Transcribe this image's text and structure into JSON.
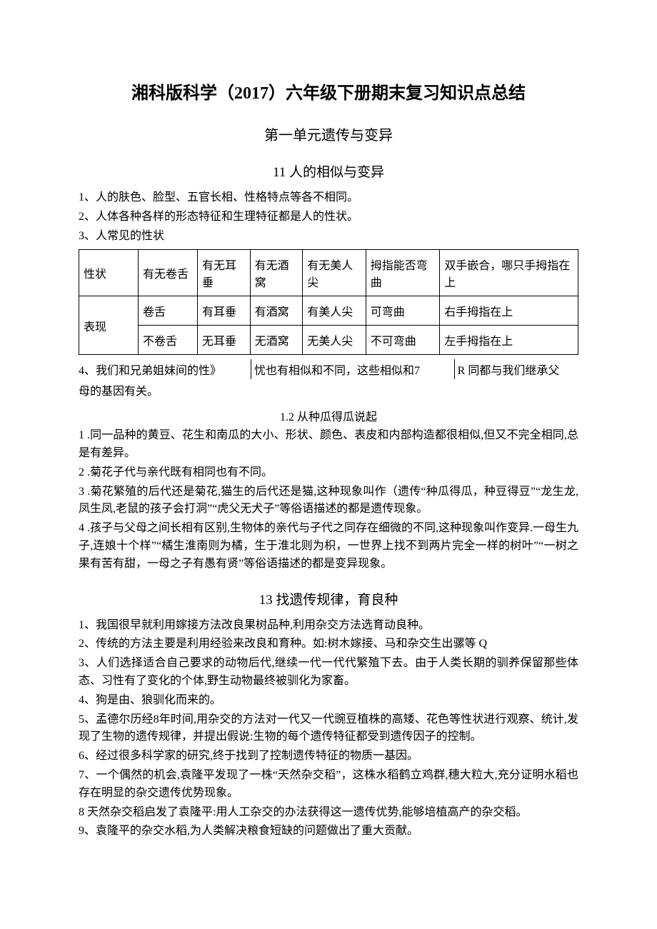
{
  "title": "湘科版科学（2017）六年级下册期末复习知识点总结",
  "unit_heading": "第一单元遗传与变异",
  "section11": {
    "heading": "11 人的相似与变异",
    "p1": "1、人的肤色、脸型、五官长相、性格特点等各不相同。",
    "p2": "2、人体各种各样的形态特征和生理特征都是人的性状。",
    "p3": "3、人常见的性状",
    "table": {
      "rows": [
        [
          "性状",
          "有无卷舌",
          "有无耳垂",
          "有无酒窝",
          "有无美人尖",
          "拇指能否弯曲",
          "双手嵌合，哪只手拇指在上"
        ],
        [
          "表现",
          "卷舌",
          "有耳垂",
          "有酒窝",
          "有美人尖",
          "可弯曲",
          "右手拇指在上"
        ],
        [
          "不卷舌",
          "无耳垂",
          "无酒窝",
          "无美人尖",
          "不可弯曲",
          "左手拇指在上"
        ]
      ]
    },
    "p4_a": "4、我们和兄弟姐妹间的性》",
    "p4_b": "忧也有相似和不同，这些相似和7",
    "p4_c": "R 同都与我们继承父",
    "p4_d": "母的基因有关。"
  },
  "section12": {
    "heading": "1.2 从种瓜得瓜说起",
    "p1": "1 .同一品种的黄豆、花生和南瓜的大小、形状、颜色、表皮和内部构造都很相似,但又不完全相同,总是有差异。",
    "p2": "2 .菊花子代与亲代既有相同也有不同。",
    "p3": "3 .菊花繁殖的后代还是菊花,猫生的后代还是猫,这种现象叫作（遗传“种瓜得瓜，种豆得豆”“龙生龙,凤生凤,老鼠的孩子会打洞”“虎父无犬子”等俗语描述的都是遗传现象。",
    "p4": "4 .孩子与父母之间长相有区别,生物体的亲代与子代之同存在细微的不同,这种现象叫作变异.一母生九子,连娘十个样”“橘生淮南则为橘，生于淮北则为枳，一世界上找不到两片完全一样的树叶”“一树之果有苦有甜，一母之子有愚有贤”等俗语描述的都是变异现象。"
  },
  "section13": {
    "heading": "13 找遗传规律，育良种",
    "p1": "1、我国很早就利用嫁接方法改良果树品种,利用杂交方法选育动良种。",
    "p2": "2、传统的方法主要是利用经验来改良和育种。如:树木嫁接、马和杂交生出骡等 Q",
    "p3": "3、人们选择适合自己要求的动物后代,继续一代一代代繁殖下去。由于人类长期的驯养保留那些体态、习性有了变化的个体,野生动物最终被驯化为家畜。",
    "p4": "4、狗是由、狼驯化而来的。",
    "p5": "5、孟德尔历经8年时间,用杂交的方法对一代又一代豌豆植株的高矮、花色等性状进行观察、统计,发现了生物的遗传规律，并提出假说:生物的每个遗传特征都受到遗传因子的控制。",
    "p6": "6、经过很多科学家的研究,终于找到了控制遗传特征的物质一基因。",
    "p7": "7、一个偶然的机会,袁隆平发现了一株“天然杂交稻”，这株水稻鹤立鸡群,穗大粒大,充分证明水稻也存在明显的杂交遗传优势现象。",
    "p8": "8 天然杂交稻启发了袁隆平:用人工杂交的办法获得这一遗传优势,能够培植高产的杂交稻。",
    "p9": "9、袁隆平的杂交水稻,为人类解决粮食短缺的问题做出了重大贡献。"
  }
}
